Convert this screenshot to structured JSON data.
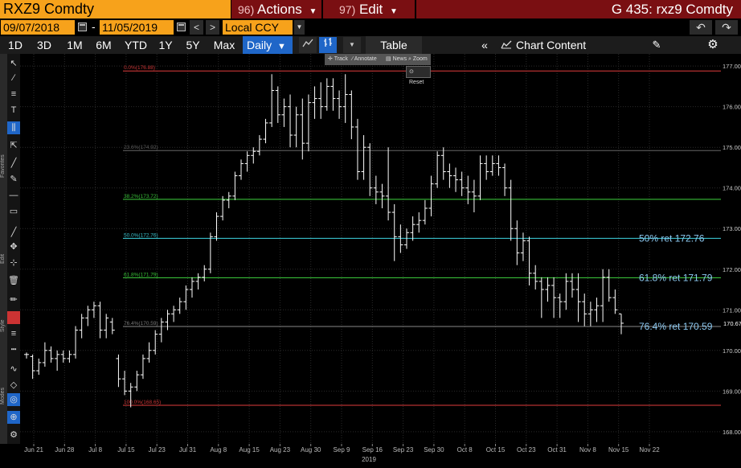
{
  "header": {
    "ticker": "RXZ9 Comdty",
    "actions_num": "96)",
    "actions_label": "Actions",
    "edit_num": "97)",
    "edit_label": "Edit",
    "title": "G 435: rxz9 Comdty"
  },
  "date_range": {
    "start": "09/07/2018",
    "end": "11/05/2019",
    "separator": "-",
    "currency": "Local CCY"
  },
  "toolbar": {
    "ranges": [
      "1D",
      "3D",
      "1M",
      "6M",
      "YTD",
      "1Y",
      "5Y",
      "Max"
    ],
    "frequency": "Daily",
    "table_label": "Table",
    "chart_content_label": "Chart Content"
  },
  "mini_toolbar": {
    "items": [
      "Track",
      "Annotate",
      "News",
      "Zoom"
    ],
    "reset": "Reset"
  },
  "sidebar": {
    "favorites_label": "Favorites",
    "edit_label": "Edit",
    "style_label": "Style",
    "modes_label": "Modes"
  },
  "chart_data": {
    "type": "ohlc",
    "security": "RXZ9 Comdty",
    "x_ticks": [
      "Jun 21",
      "Jun 28",
      "Jul 8",
      "Jul 15",
      "Jul 23",
      "Jul 31",
      "Aug 8",
      "Aug 15",
      "Aug 23",
      "Aug 30",
      "Sep 9",
      "Sep 16",
      "Sep 23",
      "Sep 30",
      "Oct 8",
      "Oct 15",
      "Oct 23",
      "Oct 31",
      "Nov 8",
      "Nov 15",
      "Nov 22"
    ],
    "x_year_label": "2019",
    "y_ticks": [
      "177.00",
      "176.00",
      "175.00",
      "174.00",
      "173.00",
      "172.00",
      "171.00",
      "170.00",
      "169.00",
      "168.00"
    ],
    "ylim": [
      167.7,
      177.3
    ],
    "last_price": "170.67",
    "last_price_value": 170.67,
    "fib_levels": [
      {
        "label": "0.0%(176.88)",
        "value": 176.88,
        "color": "#e03c3c"
      },
      {
        "label": "23.6%(174.92)",
        "value": 174.92,
        "color": "#666666"
      },
      {
        "label": "38.2%(173.72)",
        "value": 173.72,
        "color": "#3fd43f"
      },
      {
        "label": "50.0%(172.76)",
        "value": 172.76,
        "color": "#3fd4e0"
      },
      {
        "label": "61.8%(171.79)",
        "value": 171.79,
        "color": "#3fd43f"
      },
      {
        "label": "76.4%(170.59)",
        "value": 170.59,
        "color": "#888888"
      },
      {
        "label": "100.0%(168.65)",
        "value": 168.65,
        "color": "#e03c3c"
      }
    ],
    "retracement_annotations": [
      {
        "text": "50% ret 172.76",
        "value": 172.76
      },
      {
        "text": "61.8% ret 171.79",
        "value": 171.79
      },
      {
        "text": "76.4% ret 170.59",
        "value": 170.59
      }
    ],
    "bars": [
      [
        169.9,
        169.95,
        169.8,
        169.9
      ],
      [
        169.85,
        169.9,
        169.3,
        169.5
      ],
      [
        169.5,
        169.8,
        169.4,
        169.7
      ],
      [
        169.7,
        170.2,
        169.6,
        170.0
      ],
      [
        170.0,
        170.1,
        169.7,
        169.8
      ],
      [
        169.8,
        170.0,
        169.5,
        169.9
      ],
      [
        169.9,
        170.0,
        169.7,
        169.8
      ],
      [
        169.8,
        170.0,
        169.7,
        169.9
      ],
      [
        169.9,
        170.6,
        169.8,
        170.5
      ],
      [
        170.5,
        170.9,
        170.3,
        170.8
      ],
      [
        170.8,
        171.1,
        170.6,
        171.0
      ],
      [
        171.0,
        171.2,
        170.8,
        171.1
      ],
      [
        171.1,
        171.2,
        170.3,
        170.5
      ],
      [
        170.5,
        170.9,
        170.3,
        170.8
      ],
      [
        170.7,
        170.8,
        170.4,
        170.5
      ],
      [
        169.8,
        169.9,
        169.1,
        169.3
      ],
      [
        169.3,
        169.5,
        168.9,
        169.0
      ],
      [
        169.0,
        169.2,
        168.6,
        169.1
      ],
      [
        169.1,
        169.5,
        169.0,
        169.4
      ],
      [
        169.4,
        169.9,
        169.3,
        169.8
      ],
      [
        169.8,
        170.2,
        169.7,
        170.0
      ],
      [
        170.0,
        170.5,
        169.9,
        170.4
      ],
      [
        170.4,
        170.8,
        170.2,
        170.7
      ],
      [
        170.7,
        171.0,
        170.5,
        170.9
      ],
      [
        170.9,
        171.1,
        170.7,
        171.0
      ],
      [
        171.0,
        171.3,
        170.9,
        171.2
      ],
      [
        171.2,
        171.6,
        171.0,
        171.5
      ],
      [
        171.5,
        171.8,
        171.3,
        171.7
      ],
      [
        171.7,
        171.9,
        171.5,
        171.8
      ],
      [
        171.8,
        172.1,
        171.7,
        172.0
      ],
      [
        172.0,
        172.9,
        171.9,
        172.8
      ],
      [
        172.8,
        173.4,
        172.7,
        173.3
      ],
      [
        173.3,
        173.8,
        173.2,
        173.7
      ],
      [
        173.7,
        173.9,
        173.5,
        173.8
      ],
      [
        173.8,
        174.4,
        173.7,
        174.3
      ],
      [
        174.3,
        174.7,
        174.2,
        174.6
      ],
      [
        174.6,
        174.9,
        174.4,
        174.8
      ],
      [
        174.8,
        175.0,
        174.6,
        174.9
      ],
      [
        174.9,
        175.3,
        174.8,
        175.2
      ],
      [
        175.2,
        175.7,
        175.1,
        175.6
      ],
      [
        175.6,
        176.8,
        175.5,
        176.4
      ],
      [
        176.4,
        176.5,
        175.6,
        175.8
      ],
      [
        175.8,
        176.2,
        175.5,
        176.0
      ],
      [
        176.0,
        176.3,
        175.0,
        175.3
      ],
      [
        175.3,
        176.0,
        175.0,
        175.8
      ],
      [
        175.8,
        176.2,
        174.7,
        175.1
      ],
      [
        175.1,
        176.3,
        174.9,
        176.1
      ],
      [
        176.1,
        176.5,
        175.7,
        176.2
      ],
      [
        176.2,
        176.6,
        175.7,
        176.0
      ],
      [
        176.0,
        176.7,
        175.9,
        176.5
      ],
      [
        176.5,
        176.7,
        175.9,
        176.2
      ],
      [
        176.2,
        176.4,
        175.7,
        176.0
      ],
      [
        176.0,
        176.8,
        175.6,
        176.3
      ],
      [
        176.3,
        176.4,
        175.2,
        175.5
      ],
      [
        175.5,
        175.7,
        174.2,
        174.4
      ],
      [
        174.4,
        175.3,
        174.2,
        175.0
      ],
      [
        175.0,
        175.1,
        173.8,
        174.0
      ],
      [
        174.0,
        174.3,
        173.6,
        173.9
      ],
      [
        173.9,
        174.1,
        173.5,
        173.8
      ],
      [
        173.8,
        175.0,
        173.2,
        173.4
      ],
      [
        173.4,
        173.6,
        172.2,
        172.8
      ],
      [
        172.8,
        173.1,
        172.4,
        172.6
      ],
      [
        172.6,
        173.0,
        172.5,
        172.9
      ],
      [
        172.9,
        173.3,
        172.7,
        173.1
      ],
      [
        173.1,
        173.4,
        172.9,
        173.2
      ],
      [
        173.2,
        173.7,
        173.1,
        173.5
      ],
      [
        173.5,
        174.3,
        173.3,
        174.1
      ],
      [
        174.1,
        174.9,
        174.0,
        174.8
      ],
      [
        174.8,
        175.0,
        174.2,
        174.4
      ],
      [
        174.4,
        174.6,
        174.0,
        174.3
      ],
      [
        174.3,
        174.5,
        173.9,
        174.2
      ],
      [
        174.2,
        174.4,
        173.8,
        174.0
      ],
      [
        174.0,
        174.3,
        173.6,
        173.9
      ],
      [
        173.9,
        174.2,
        173.4,
        173.8
      ],
      [
        173.8,
        174.8,
        173.7,
        174.6
      ],
      [
        174.6,
        174.8,
        174.2,
        174.4
      ],
      [
        174.4,
        174.8,
        174.3,
        174.6
      ],
      [
        174.6,
        174.8,
        174.3,
        174.5
      ],
      [
        174.5,
        174.6,
        173.8,
        174.0
      ],
      [
        174.0,
        174.2,
        172.7,
        173.0
      ],
      [
        173.0,
        173.2,
        172.1,
        172.4
      ],
      [
        172.4,
        172.9,
        172.2,
        172.7
      ],
      [
        172.7,
        172.8,
        171.6,
        171.9
      ],
      [
        171.9,
        172.1,
        171.5,
        171.7
      ],
      [
        171.7,
        171.8,
        170.8,
        171.5
      ],
      [
        171.5,
        171.8,
        171.2,
        171.6
      ],
      [
        171.6,
        171.8,
        170.8,
        171.3
      ],
      [
        171.3,
        171.4,
        170.8,
        171.2
      ],
      [
        171.2,
        171.9,
        171.0,
        171.7
      ],
      [
        171.7,
        171.9,
        171.3,
        171.5
      ],
      [
        171.5,
        171.9,
        170.7,
        171.2
      ],
      [
        171.2,
        171.4,
        170.6,
        170.9
      ],
      [
        170.9,
        171.2,
        170.6,
        171.0
      ],
      [
        171.0,
        171.3,
        170.7,
        171.1
      ],
      [
        171.1,
        172.0,
        170.7,
        171.8
      ],
      [
        171.8,
        172.0,
        171.2,
        171.3
      ],
      [
        171.3,
        171.5,
        170.9,
        171.0
      ],
      [
        170.9,
        170.9,
        170.4,
        170.67
      ]
    ]
  }
}
